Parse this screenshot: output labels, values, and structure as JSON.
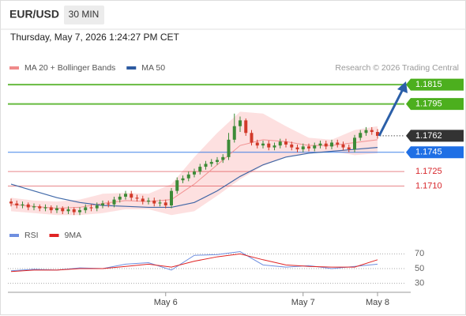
{
  "header": {
    "symbol": "EUR/USD",
    "interval": "30 MIN",
    "timestamp": "Thursday, May 7, 2026 1:24:27 PM CET"
  },
  "chart_data": [
    {
      "type": "candlestick",
      "copyright": "Research © 2026 Trading Central",
      "up_color": "#3d8b37",
      "down_color": "#d23a2a",
      "xlim": [
        0,
        64
      ],
      "ylim": [
        1.1672,
        1.1829
      ],
      "open": [
        1.1694,
        1.1692,
        1.169,
        1.1691,
        1.1688,
        1.1689,
        1.1687,
        1.1688,
        1.1685,
        1.1687,
        1.1684,
        1.1686,
        1.1683,
        1.1685,
        1.1688,
        1.1687,
        1.169,
        1.1692,
        1.1691,
        1.1696,
        1.1699,
        1.1702,
        1.1698,
        1.1697,
        1.1694,
        1.1695,
        1.1692,
        1.1693,
        1.169,
        1.1705,
        1.1716,
        1.1718,
        1.1722,
        1.1725,
        1.173,
        1.1733,
        1.1735,
        1.1737,
        1.174,
        1.1758,
        1.1772,
        1.1778,
        1.1765,
        1.1755,
        1.1752,
        1.1754,
        1.175,
        1.1752,
        1.1756,
        1.1753,
        1.175,
        1.1748,
        1.1751,
        1.1749,
        1.1752,
        1.1754,
        1.1751,
        1.1755,
        1.1753,
        1.175,
        1.1748,
        1.176,
        1.1765,
        1.1768,
        1.1766
      ],
      "high": [
        1.1697,
        1.1695,
        1.1694,
        1.1693,
        1.1692,
        1.1691,
        1.1691,
        1.169,
        1.169,
        1.1689,
        1.1689,
        1.1688,
        1.1688,
        1.1691,
        1.1691,
        1.1693,
        1.1695,
        1.1695,
        1.1699,
        1.1702,
        1.1705,
        1.1705,
        1.1701,
        1.17,
        1.1698,
        1.1698,
        1.1696,
        1.1696,
        1.1708,
        1.1719,
        1.1721,
        1.1725,
        1.1728,
        1.1733,
        1.1736,
        1.1738,
        1.174,
        1.1743,
        1.1765,
        1.1785,
        1.1782,
        1.178,
        1.1768,
        1.1758,
        1.1757,
        1.1757,
        1.1755,
        1.1759,
        1.1759,
        1.1756,
        1.1753,
        1.1754,
        1.1754,
        1.1755,
        1.1757,
        1.1757,
        1.1758,
        1.1758,
        1.1756,
        1.1753,
        1.1763,
        1.1768,
        1.1771,
        1.1771,
        1.1769
      ],
      "low": [
        1.1689,
        1.1687,
        1.1687,
        1.1685,
        1.1685,
        1.1684,
        1.1684,
        1.1682,
        1.1682,
        1.1681,
        1.1681,
        1.168,
        1.168,
        1.1682,
        1.1684,
        1.1684,
        1.1687,
        1.1688,
        1.1688,
        1.1693,
        1.1696,
        1.1695,
        1.1694,
        1.1691,
        1.1691,
        1.1689,
        1.1689,
        1.1687,
        1.1687,
        1.1702,
        1.1713,
        1.1715,
        1.1719,
        1.1722,
        1.1727,
        1.173,
        1.1732,
        1.1734,
        1.1737,
        1.1755,
        1.1766,
        1.1762,
        1.1752,
        1.1749,
        1.1749,
        1.1747,
        1.1747,
        1.1749,
        1.175,
        1.1747,
        1.1745,
        1.1745,
        1.1746,
        1.1746,
        1.1749,
        1.1748,
        1.1748,
        1.175,
        1.1747,
        1.1745,
        1.1745,
        1.1757,
        1.1762,
        1.1763,
        1.1759
      ],
      "close": [
        1.1692,
        1.169,
        1.1691,
        1.1688,
        1.1689,
        1.1687,
        1.1688,
        1.1685,
        1.1687,
        1.1684,
        1.1686,
        1.1683,
        1.1685,
        1.1688,
        1.1687,
        1.169,
        1.1692,
        1.1691,
        1.1696,
        1.1699,
        1.1702,
        1.1698,
        1.1697,
        1.1694,
        1.1695,
        1.1692,
        1.1693,
        1.169,
        1.1705,
        1.1716,
        1.1718,
        1.1722,
        1.1725,
        1.173,
        1.1733,
        1.1735,
        1.1737,
        1.174,
        1.1758,
        1.1772,
        1.1778,
        1.1765,
        1.1755,
        1.1752,
        1.1754,
        1.175,
        1.1752,
        1.1756,
        1.1753,
        1.175,
        1.1748,
        1.1751,
        1.1749,
        1.1752,
        1.1754,
        1.1751,
        1.1755,
        1.1753,
        1.175,
        1.1748,
        1.176,
        1.1765,
        1.1768,
        1.1766,
        1.1762
      ],
      "series": [
        {
          "name": "MA 20 + Bollinger Bands",
          "color": "#f08a8a",
          "band_color": "#fde0e0",
          "x": [
            0,
            4,
            8,
            12,
            16,
            20,
            24,
            28,
            32,
            36,
            40,
            44,
            48,
            52,
            56,
            60,
            64
          ],
          "values": [
            1.1691,
            1.1689,
            1.1687,
            1.1688,
            1.1692,
            1.1695,
            1.1694,
            1.1696,
            1.1712,
            1.1732,
            1.1752,
            1.1758,
            1.1756,
            1.1752,
            1.1752,
            1.1755,
            1.1758
          ],
          "upper": [
            1.1698,
            1.1695,
            1.1694,
            1.1696,
            1.1702,
            1.1703,
            1.1702,
            1.1712,
            1.174,
            1.1765,
            1.1787,
            1.1785,
            1.1772,
            1.176,
            1.1758,
            1.1768,
            1.1772
          ],
          "lower": [
            1.1684,
            1.1682,
            1.168,
            1.168,
            1.1682,
            1.1686,
            1.1686,
            1.168,
            1.1684,
            1.17,
            1.1717,
            1.1731,
            1.174,
            1.1744,
            1.1746,
            1.1742,
            1.1744
          ]
        },
        {
          "name": "MA 50",
          "color": "#2c5aa0",
          "x": [
            0,
            4,
            8,
            12,
            16,
            20,
            24,
            28,
            32,
            36,
            40,
            44,
            48,
            52,
            56,
            60,
            64
          ],
          "values": [
            1.1712,
            1.1705,
            1.1698,
            1.1693,
            1.169,
            1.1689,
            1.1688,
            1.1688,
            1.1693,
            1.1705,
            1.172,
            1.1732,
            1.174,
            1.1744,
            1.1746,
            1.1748,
            1.175
          ]
        }
      ],
      "levels": [
        {
          "value": 1.1815,
          "color": "#4caf1e",
          "style": "box"
        },
        {
          "value": 1.1795,
          "color": "#4caf1e",
          "style": "box"
        },
        {
          "value": 1.1762,
          "color": "#333333",
          "style": "current"
        },
        {
          "value": 1.1745,
          "color": "#1f6fe5",
          "style": "box"
        },
        {
          "value": 1.1725,
          "color": "#d7262b",
          "style": "text"
        },
        {
          "value": 1.171,
          "label": "1.1710",
          "color": "#d7262b",
          "style": "text"
        }
      ]
    },
    {
      "type": "line",
      "xlim": [
        0,
        64
      ],
      "ylim": [
        20,
        80
      ],
      "yticks": [
        30,
        50,
        70
      ],
      "xticks": [
        {
          "value": 27,
          "label": "May 6"
        },
        {
          "value": 51,
          "label": "May 7"
        },
        {
          "value": 64,
          "label": "May 8"
        }
      ],
      "series": [
        {
          "name": "RSI",
          "color": "#6f8fe0",
          "x": [
            0,
            4,
            8,
            12,
            16,
            20,
            24,
            28,
            32,
            36,
            40,
            44,
            48,
            52,
            56,
            60,
            64
          ],
          "values": [
            47,
            49,
            48,
            51,
            50,
            56,
            58,
            48,
            68,
            69,
            73,
            55,
            52,
            54,
            50,
            53,
            56
          ]
        },
        {
          "name": "9MA",
          "color": "#e02424",
          "x": [
            0,
            4,
            8,
            12,
            16,
            20,
            24,
            28,
            32,
            36,
            40,
            44,
            48,
            52,
            56,
            60,
            64
          ],
          "values": [
            46,
            48,
            48,
            50,
            50,
            53,
            56,
            52,
            60,
            66,
            70,
            62,
            55,
            53,
            52,
            52,
            62
          ]
        }
      ]
    }
  ]
}
